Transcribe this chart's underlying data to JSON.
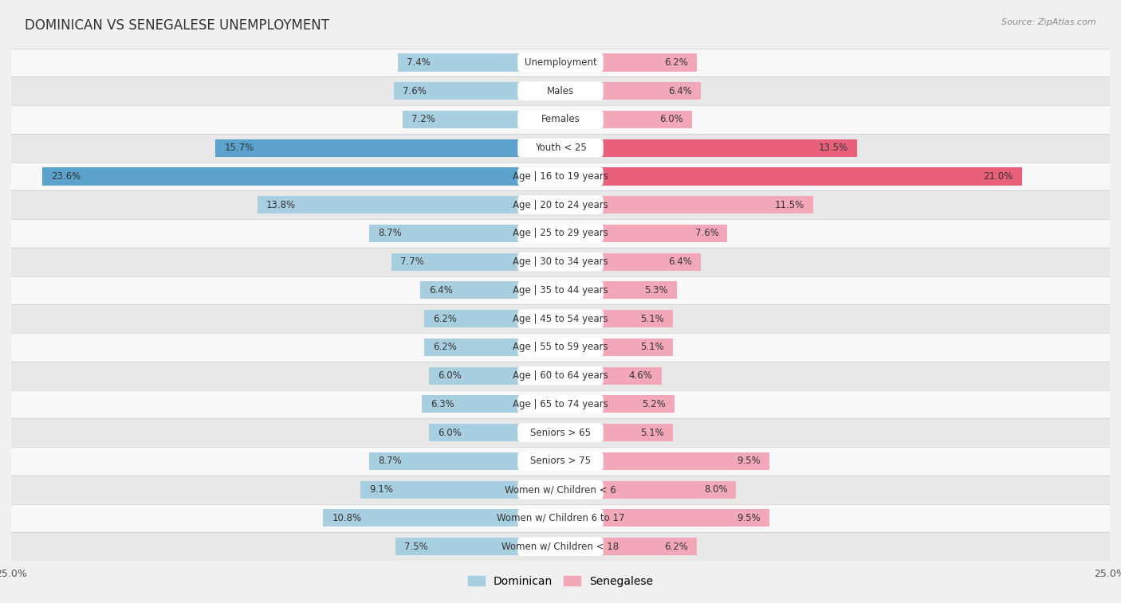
{
  "title": "DOMINICAN VS SENEGALESE UNEMPLOYMENT",
  "source": "Source: ZipAtlas.com",
  "categories": [
    "Unemployment",
    "Males",
    "Females",
    "Youth < 25",
    "Age | 16 to 19 years",
    "Age | 20 to 24 years",
    "Age | 25 to 29 years",
    "Age | 30 to 34 years",
    "Age | 35 to 44 years",
    "Age | 45 to 54 years",
    "Age | 55 to 59 years",
    "Age | 60 to 64 years",
    "Age | 65 to 74 years",
    "Seniors > 65",
    "Seniors > 75",
    "Women w/ Children < 6",
    "Women w/ Children 6 to 17",
    "Women w/ Children < 18"
  ],
  "dominican": [
    7.4,
    7.6,
    7.2,
    15.7,
    23.6,
    13.8,
    8.7,
    7.7,
    6.4,
    6.2,
    6.2,
    6.0,
    6.3,
    6.0,
    8.7,
    9.1,
    10.8,
    7.5
  ],
  "senegalese": [
    6.2,
    6.4,
    6.0,
    13.5,
    21.0,
    11.5,
    7.6,
    6.4,
    5.3,
    5.1,
    5.1,
    4.6,
    5.2,
    5.1,
    9.5,
    8.0,
    9.5,
    6.2
  ],
  "dominican_color": "#a8cfe0",
  "senegalese_color": "#f2a8b8",
  "dominican_highlight_color": "#5ba3cc",
  "senegalese_highlight_color": "#e8607a",
  "highlight_rows": [
    3,
    4
  ],
  "background_color": "#f0f0f0",
  "row_bg_white": "#f8f8f8",
  "row_bg_gray": "#e8e8e8",
  "xlim": 25.0,
  "bar_height": 0.62,
  "title_fontsize": 12,
  "label_fontsize": 8.5,
  "value_fontsize": 8.5
}
